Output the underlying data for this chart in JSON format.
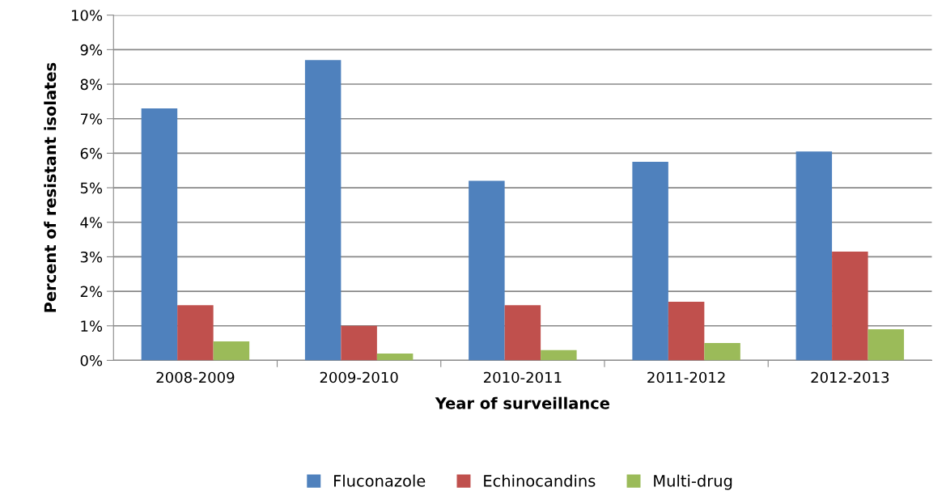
{
  "chart_data": {
    "type": "bar",
    "xlabel": "Year of surveillance",
    "ylabel": "Percent of resistant isolates",
    "categories": [
      "2008-2009",
      "2009-2010",
      "2010-2011",
      "2011-2012",
      "2012-2013"
    ],
    "series": [
      {
        "name": "Fluconazole",
        "color": "#4f81bd",
        "values": [
          7.3,
          8.7,
          5.2,
          5.75,
          6.05
        ]
      },
      {
        "name": "Echinocandins",
        "color": "#c0504d",
        "values": [
          1.6,
          1.0,
          1.6,
          1.7,
          3.15
        ]
      },
      {
        "name": "Multi-drug",
        "color": "#9bbb59",
        "values": [
          0.55,
          0.2,
          0.3,
          0.5,
          0.9
        ]
      }
    ],
    "ylim": [
      0,
      10
    ],
    "yticks": [
      {
        "value": 0,
        "label": "0%"
      },
      {
        "value": 1,
        "label": "1%"
      },
      {
        "value": 2,
        "label": "2%"
      },
      {
        "value": 3,
        "label": "3%"
      },
      {
        "value": 4,
        "label": "4%"
      },
      {
        "value": 5,
        "label": "5%"
      },
      {
        "value": 6,
        "label": "6%"
      },
      {
        "value": 7,
        "label": "7%"
      },
      {
        "value": 8,
        "label": "8%"
      },
      {
        "value": 9,
        "label": "9%"
      },
      {
        "value": 10,
        "label": "10%"
      }
    ],
    "grid": "y",
    "legend": "bottom"
  }
}
